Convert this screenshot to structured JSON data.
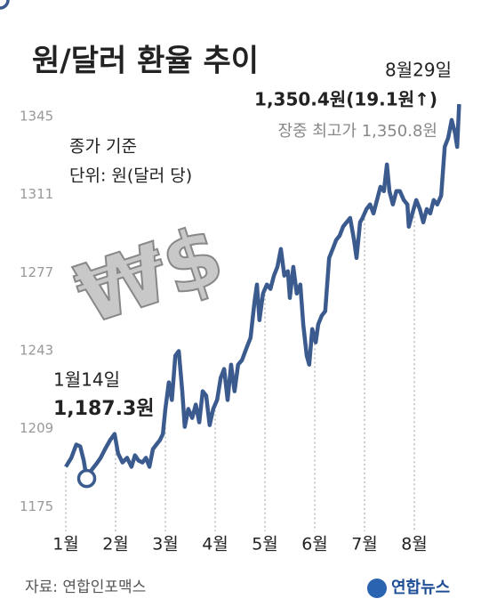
{
  "chart_data": {
    "type": "line",
    "title": "원/달러 환율 추이",
    "notes": [
      "종가 기준",
      "단위: 원(달러 당)"
    ],
    "decoration": "₩$",
    "annotations": [
      {
        "date": "1월14일",
        "text": "1,187.3원"
      },
      {
        "date": "8월29일",
        "text": "1,350.4원(19.1원↑)",
        "subtext": "장중 최고가 1,350.8원"
      }
    ],
    "source": "자료: 연합인포맥스",
    "logo": "연합뉴스",
    "color": "#3b5b8e",
    "highlight": [
      5,
      122
    ],
    "x": [
      1.0,
      1.11,
      1.21,
      1.29,
      1.36,
      1.42,
      1.5,
      1.61,
      1.7,
      1.79,
      1.89,
      1.98,
      2.05,
      2.14,
      2.23,
      2.32,
      2.39,
      2.46,
      2.54,
      2.61,
      2.68,
      2.75,
      2.82,
      2.89,
      2.95,
      3.0,
      3.07,
      3.13,
      3.2,
      3.27,
      3.34,
      3.39,
      3.46,
      3.54,
      3.61,
      3.68,
      3.75,
      3.82,
      3.89,
      3.96,
      4.04,
      4.11,
      4.18,
      4.25,
      4.32,
      4.39,
      4.46,
      4.54,
      4.64,
      4.71,
      4.79,
      4.84,
      4.89,
      4.96,
      5.04,
      5.11,
      5.18,
      5.25,
      5.32,
      5.39,
      5.46,
      5.5,
      5.57,
      5.64,
      5.71,
      5.77,
      5.84,
      5.89,
      5.95,
      6.02,
      6.07,
      6.14,
      6.21,
      6.29,
      6.36,
      6.43,
      6.5,
      6.57,
      6.64,
      6.71,
      6.79,
      6.84,
      6.91,
      6.96,
      7.04,
      7.11,
      7.18,
      7.25,
      7.32,
      7.39,
      7.45,
      7.5,
      7.57,
      7.64,
      7.71,
      7.79,
      7.86,
      7.89,
      7.96,
      8.04,
      8.11,
      8.18,
      8.25,
      8.32,
      8.39,
      8.46,
      8.54,
      8.61,
      8.68,
      8.75,
      8.82,
      8.86,
      8.9
    ],
    "values": [
      1192.4,
      1196.3,
      1202.1,
      1201.3,
      1195.1,
      1187.3,
      1190.5,
      1193.6,
      1196.3,
      1200.1,
      1204.0,
      1206.7,
      1198.2,
      1194.3,
      1196.3,
      1192.4,
      1197.4,
      1195.1,
      1194.3,
      1196.3,
      1192.4,
      1200.1,
      1202.1,
      1204.0,
      1206.7,
      1217.6,
      1229.2,
      1221.5,
      1240.8,
      1242.8,
      1225.3,
      1209.8,
      1217.6,
      1213.7,
      1219.5,
      1211.8,
      1225.3,
      1223.4,
      1210.6,
      1217.6,
      1221.5,
      1231.1,
      1235.0,
      1221.5,
      1236.9,
      1225.3,
      1236.9,
      1238.9,
      1244.7,
      1248.6,
      1264.1,
      1271.8,
      1256.3,
      1267.9,
      1271.8,
      1269.9,
      1275.7,
      1279.5,
      1287.3,
      1275.7,
      1277.6,
      1266.0,
      1279.5,
      1267.9,
      1271.8,
      1254.4,
      1240.8,
      1236.9,
      1252.4,
      1246.6,
      1254.4,
      1258.2,
      1260.2,
      1283.4,
      1287.3,
      1291.2,
      1293.1,
      1297.0,
      1298.9,
      1300.8,
      1291.2,
      1283.4,
      1298.9,
      1300.8,
      1304.7,
      1306.7,
      1302.8,
      1308.6,
      1314.4,
      1312.5,
      1324.1,
      1312.5,
      1306.7,
      1312.5,
      1312.5,
      1308.6,
      1306.7,
      1297.0,
      1302.8,
      1308.6,
      1304.7,
      1298.9,
      1304.7,
      1302.8,
      1308.6,
      1306.7,
      1310.5,
      1331.8,
      1335.7,
      1343.5,
      1337.6,
      1331.8,
      1350.4
    ],
    "xlim": [
      1,
      9
    ],
    "xticks": [
      {
        "value": 1,
        "label": "1월"
      },
      {
        "value": 2,
        "label": "2월"
      },
      {
        "value": 3,
        "label": "3월"
      },
      {
        "value": 4,
        "label": "4월"
      },
      {
        "value": 5,
        "label": "5월"
      },
      {
        "value": 6,
        "label": "6월"
      },
      {
        "value": 7,
        "label": "7월"
      },
      {
        "value": 8,
        "label": "8월"
      }
    ],
    "ylim": [
      1167,
      1357
    ],
    "yticks": [
      1175,
      1209,
      1243,
      1277,
      1311,
      1345
    ]
  }
}
